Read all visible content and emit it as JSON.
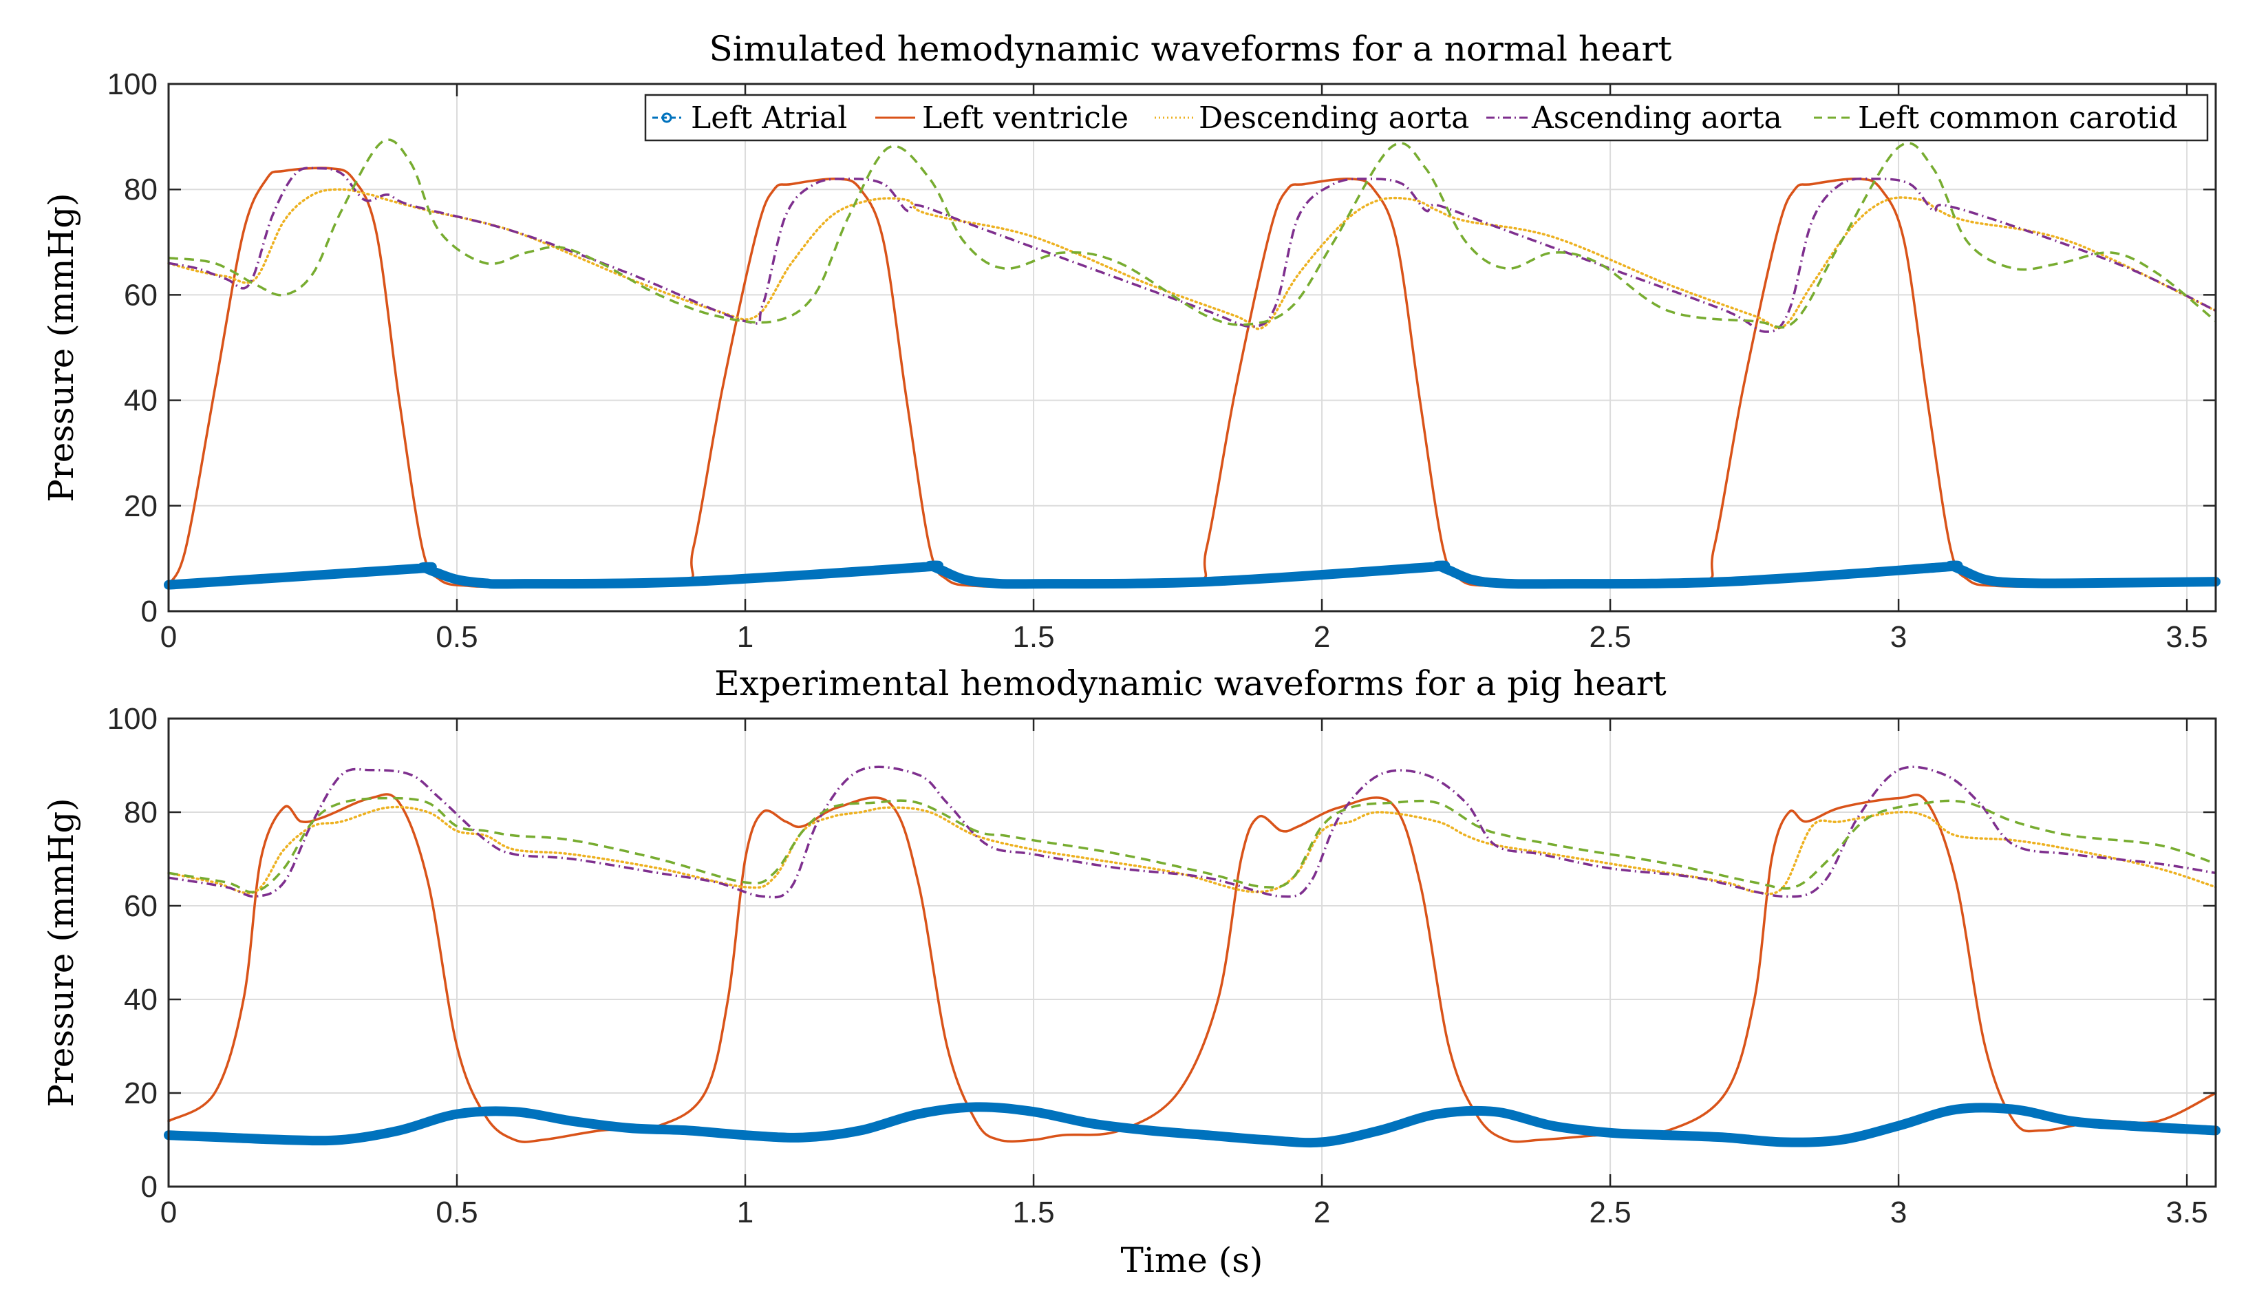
{
  "figure": {
    "xlabel": "Time (s)"
  },
  "legend": {
    "entries": [
      {
        "name": "Left Atrial",
        "color": "#0072BD",
        "style": "thick-circle"
      },
      {
        "name": "Left ventricle",
        "color": "#D95319",
        "style": "solid"
      },
      {
        "name": "Descending aorta",
        "color": "#EDB120",
        "style": "dotted"
      },
      {
        "name": "Ascending aorta",
        "color": "#7E2F8E",
        "style": "dashdot"
      },
      {
        "name": "Left common carotid",
        "color": "#77AC30",
        "style": "dashed"
      }
    ]
  },
  "chart_data": [
    {
      "type": "line",
      "title": "Simulated hemodynamic waveforms for a normal heart",
      "xlabel": "",
      "ylabel": "Pressure (mmHg)",
      "xlim": [
        0,
        3.55
      ],
      "ylim": [
        0,
        100
      ],
      "xticks": [
        0,
        0.5,
        1,
        1.5,
        2,
        2.5,
        3,
        3.5
      ],
      "xtick_labels": [
        "0",
        "0.5",
        "1",
        "1.5",
        "2",
        "2.5",
        "3",
        "3.5"
      ],
      "yticks": [
        0,
        20,
        40,
        60,
        80,
        100
      ],
      "ytick_labels": [
        "0",
        "20",
        "40",
        "60",
        "80",
        "100"
      ],
      "grid": true,
      "legend_position": "top-right",
      "series": [
        {
          "name": "Left Atrial",
          "color": "#0072BD",
          "style": "thick",
          "x": [
            0,
            0.42,
            0.44,
            0.46,
            0.5,
            0.55,
            0.6,
            0.9,
            1.3,
            1.32,
            1.34,
            1.38,
            1.43,
            1.5,
            1.8,
            2.18,
            2.2,
            2.22,
            2.26,
            2.31,
            2.4,
            2.7,
            3.07,
            3.09,
            3.11,
            3.15,
            3.2,
            3.3,
            3.55
          ],
          "y": [
            5,
            8,
            8.3,
            7.5,
            6,
            5.3,
            5.2,
            5.6,
            8.3,
            8.6,
            7.8,
            6,
            5.3,
            5.2,
            5.6,
            8.3,
            8.6,
            7.8,
            6,
            5.3,
            5.2,
            5.6,
            8.3,
            8.6,
            7.8,
            6,
            5.4,
            5.3,
            5.6
          ]
        },
        {
          "name": "Left ventricle",
          "color": "#D95319",
          "style": "solid",
          "x": [
            0,
            0.03,
            0.08,
            0.13,
            0.17,
            0.2,
            0.28,
            0.32,
            0.36,
            0.4,
            0.44,
            0.47,
            0.52,
            0.6,
            0.88,
            0.91,
            0.96,
            1.02,
            1.05,
            1.08,
            1.16,
            1.2,
            1.24,
            1.28,
            1.32,
            1.35,
            1.4,
            1.5,
            1.77,
            1.8,
            1.85,
            1.91,
            1.94,
            1.97,
            2.05,
            2.09,
            2.13,
            2.17,
            2.21,
            2.24,
            2.29,
            2.4,
            2.65,
            2.68,
            2.73,
            2.79,
            2.82,
            2.85,
            2.93,
            2.97,
            3.01,
            3.05,
            3.09,
            3.12,
            3.17,
            3.3,
            3.55
          ],
          "y": [
            5,
            12,
            42,
            72,
            82,
            83.5,
            84,
            82,
            72,
            40,
            12,
            6,
            4.8,
            4.8,
            5.5,
            12,
            42,
            72,
            80,
            81,
            82,
            80,
            70,
            40,
            12,
            6,
            4.8,
            4.8,
            5.5,
            12,
            42,
            72,
            80,
            81,
            82,
            80,
            70,
            40,
            12,
            6,
            4.8,
            4.8,
            5.5,
            12,
            42,
            72,
            80,
            81,
            82,
            80,
            70,
            40,
            12,
            6,
            4.8,
            4.8,
            5.5
          ]
        },
        {
          "name": "Descending aorta",
          "color": "#EDB120",
          "style": "dotted",
          "x": [
            0,
            0.05,
            0.1,
            0.15,
            0.2,
            0.25,
            0.3,
            0.35,
            0.38,
            0.45,
            0.6,
            0.8,
            0.95,
            1.02,
            1.08,
            1.15,
            1.22,
            1.28,
            1.3,
            1.35,
            1.5,
            1.7,
            1.85,
            1.9,
            1.96,
            2.04,
            2.1,
            2.16,
            2.2,
            2.25,
            2.4,
            2.6,
            2.75,
            2.8,
            2.85,
            2.92,
            2.98,
            3.04,
            3.07,
            3.12,
            3.3,
            3.55
          ],
          "y": [
            66,
            64.5,
            63.5,
            63,
            74,
            79,
            80,
            79,
            78,
            76,
            72,
            63,
            57,
            56,
            66,
            75,
            78,
            78,
            76,
            74.5,
            71,
            62,
            56,
            54,
            64,
            74,
            78,
            78,
            76,
            74,
            71,
            62,
            56,
            54,
            62,
            73,
            78,
            78,
            76,
            74,
            70,
            57
          ]
        },
        {
          "name": "Ascending aorta",
          "color": "#7E2F8E",
          "style": "dashdot",
          "x": [
            0,
            0.05,
            0.1,
            0.14,
            0.18,
            0.22,
            0.26,
            0.3,
            0.34,
            0.38,
            0.42,
            0.6,
            0.8,
            1.0,
            1.03,
            1.07,
            1.12,
            1.18,
            1.24,
            1.28,
            1.3,
            1.4,
            1.6,
            1.8,
            1.88,
            1.92,
            1.96,
            2.02,
            2.08,
            2.14,
            2.18,
            2.2,
            2.3,
            2.5,
            2.7,
            2.77,
            2.81,
            2.85,
            2.9,
            2.96,
            3.02,
            3.06,
            3.08,
            3.2,
            3.4,
            3.55
          ],
          "y": [
            66,
            65,
            63,
            62,
            75,
            83,
            84,
            83,
            78,
            79,
            77,
            72,
            64,
            55,
            58,
            75,
            81,
            82,
            81,
            76,
            77,
            73,
            65,
            57,
            54,
            58,
            75,
            81,
            82,
            81,
            76,
            77,
            73,
            65,
            57,
            53,
            57,
            74,
            81,
            82,
            81,
            76,
            77,
            73,
            65,
            57
          ]
        },
        {
          "name": "Left common carotid",
          "color": "#77AC30",
          "style": "dashed",
          "x": [
            0,
            0.08,
            0.15,
            0.2,
            0.25,
            0.3,
            0.37,
            0.42,
            0.47,
            0.55,
            0.62,
            0.68,
            0.75,
            0.85,
            0.95,
            1.05,
            1.12,
            1.18,
            1.25,
            1.32,
            1.38,
            1.45,
            1.55,
            1.65,
            1.8,
            1.88,
            1.95,
            2.02,
            2.12,
            2.18,
            2.25,
            2.32,
            2.4,
            2.48,
            2.6,
            2.75,
            2.82,
            2.9,
            3.0,
            3.06,
            3.12,
            3.2,
            3.28,
            3.37,
            3.45,
            3.55
          ],
          "y": [
            67,
            66,
            62,
            60,
            64,
            76,
            89,
            85,
            72,
            66,
            68,
            69,
            66,
            60,
            56,
            55,
            60,
            75,
            88,
            82,
            70,
            65,
            68,
            66,
            56,
            54.5,
            58,
            70,
            88,
            84,
            70,
            65,
            68,
            66,
            57,
            55,
            55,
            70,
            88,
            84,
            70,
            65,
            66,
            68,
            64,
            55
          ]
        }
      ]
    },
    {
      "type": "line",
      "title": "Experimental hemodynamic waveforms for a pig heart",
      "xlabel": "Time (s)",
      "ylabel": "Pressure (mmHg)",
      "xlim": [
        0,
        3.55
      ],
      "ylim": [
        0,
        100
      ],
      "xticks": [
        0,
        0.5,
        1,
        1.5,
        2,
        2.5,
        3,
        3.5
      ],
      "xtick_labels": [
        "0",
        "0.5",
        "1",
        "1.5",
        "2",
        "2.5",
        "3",
        "3.5"
      ],
      "yticks": [
        0,
        20,
        40,
        60,
        80,
        100
      ],
      "ytick_labels": [
        "0",
        "20",
        "40",
        "60",
        "80",
        "100"
      ],
      "grid": true,
      "series": [
        {
          "name": "Left Atrial",
          "color": "#0072BD",
          "style": "thick",
          "x": [
            0,
            0.1,
            0.2,
            0.3,
            0.4,
            0.5,
            0.6,
            0.7,
            0.8,
            0.9,
            1.0,
            1.1,
            1.2,
            1.3,
            1.4,
            1.5,
            1.6,
            1.7,
            1.8,
            1.9,
            2.0,
            2.1,
            2.2,
            2.3,
            2.4,
            2.5,
            2.6,
            2.7,
            2.8,
            2.9,
            3.0,
            3.1,
            3.2,
            3.3,
            3.4,
            3.55
          ],
          "y": [
            11,
            10.5,
            10,
            10,
            12,
            15.5,
            16,
            14,
            12.5,
            12,
            11,
            10.5,
            12,
            15.5,
            17,
            16,
            13.5,
            12,
            11,
            10,
            9.5,
            12,
            15.5,
            16,
            13,
            11.5,
            11,
            10.5,
            9.5,
            10,
            13,
            16.5,
            16.5,
            14,
            13,
            12
          ]
        },
        {
          "name": "Left ventricle",
          "color": "#D95319",
          "style": "solid",
          "x": [
            0,
            0.08,
            0.13,
            0.16,
            0.2,
            0.23,
            0.27,
            0.35,
            0.4,
            0.45,
            0.5,
            0.55,
            0.6,
            0.65,
            0.75,
            0.85,
            0.93,
            0.97,
            1.0,
            1.03,
            1.07,
            1.1,
            1.16,
            1.25,
            1.3,
            1.35,
            1.4,
            1.44,
            1.5,
            1.55,
            1.65,
            1.75,
            1.82,
            1.86,
            1.89,
            1.93,
            1.96,
            2.03,
            2.12,
            2.17,
            2.22,
            2.27,
            2.32,
            2.38,
            2.48,
            2.6,
            2.7,
            2.75,
            2.78,
            2.81,
            2.84,
            2.9,
            3.0,
            3.05,
            3.1,
            3.15,
            3.2,
            3.25,
            3.35,
            3.45,
            3.55
          ],
          "y": [
            14,
            20,
            40,
            70,
            81,
            78,
            79,
            83,
            82,
            65,
            30,
            15,
            10,
            10,
            12,
            13,
            20,
            40,
            70,
            80,
            78,
            77,
            81,
            82,
            65,
            30,
            14,
            10,
            10,
            11,
            12,
            20,
            40,
            70,
            79,
            76,
            77,
            81,
            82,
            65,
            30,
            15,
            10,
            10,
            11,
            12,
            20,
            40,
            70,
            80,
            78,
            81,
            83,
            82,
            65,
            30,
            14,
            12,
            14,
            14,
            20
          ]
        },
        {
          "name": "Descending aorta",
          "color": "#EDB120",
          "style": "dotted",
          "x": [
            0,
            0.08,
            0.15,
            0.2,
            0.25,
            0.3,
            0.38,
            0.45,
            0.5,
            0.55,
            0.6,
            0.7,
            0.85,
            1.0,
            1.05,
            1.1,
            1.15,
            1.2,
            1.25,
            1.32,
            1.4,
            1.5,
            1.6,
            1.75,
            1.88,
            1.95,
            2.0,
            2.05,
            2.1,
            2.2,
            2.25,
            2.3,
            2.4,
            2.55,
            2.7,
            2.75,
            2.8,
            2.85,
            2.9,
            3.0,
            3.05,
            3.1,
            3.2,
            3.3,
            3.45,
            3.55
          ],
          "y": [
            67,
            65,
            63,
            72,
            77,
            78,
            81,
            80,
            76,
            75,
            72,
            71,
            68,
            64,
            66,
            76,
            79,
            80,
            81,
            80,
            75,
            72,
            70,
            67,
            63,
            66,
            76,
            78,
            80,
            78,
            75,
            73,
            71,
            68,
            65,
            63,
            64,
            77,
            78,
            80,
            79,
            75,
            74,
            72,
            68,
            64
          ]
        },
        {
          "name": "Ascending aorta",
          "color": "#7E2F8E",
          "style": "dashdot",
          "x": [
            0,
            0.1,
            0.15,
            0.2,
            0.25,
            0.3,
            0.35,
            0.42,
            0.47,
            0.55,
            0.6,
            0.7,
            0.85,
            0.95,
            1.03,
            1.08,
            1.13,
            1.2,
            1.3,
            1.35,
            1.42,
            1.5,
            1.65,
            1.8,
            1.93,
            1.98,
            2.03,
            2.1,
            2.18,
            2.25,
            2.3,
            2.38,
            2.5,
            2.65,
            2.8,
            2.87,
            2.93,
            3.0,
            3.08,
            3.14,
            3.2,
            3.3,
            3.45,
            3.55
          ],
          "y": [
            66,
            64,
            62,
            65,
            78,
            88,
            89,
            88,
            83,
            74,
            71,
            70,
            67,
            65,
            62,
            64,
            79,
            89,
            88,
            82,
            73,
            71,
            68,
            66,
            62,
            65,
            79,
            88,
            88,
            82,
            73,
            71,
            68,
            66,
            62,
            65,
            79,
            89,
            88,
            82,
            73,
            71,
            69,
            67
          ]
        },
        {
          "name": "Left common carotid",
          "color": "#77AC30",
          "style": "dashed",
          "x": [
            0,
            0.1,
            0.15,
            0.2,
            0.25,
            0.3,
            0.38,
            0.45,
            0.5,
            0.55,
            0.6,
            0.7,
            0.85,
            1.0,
            1.05,
            1.1,
            1.15,
            1.22,
            1.3,
            1.4,
            1.45,
            1.5,
            1.65,
            1.8,
            1.9,
            1.95,
            2.0,
            2.05,
            2.12,
            2.2,
            2.27,
            2.32,
            2.45,
            2.6,
            2.75,
            2.82,
            2.88,
            2.95,
            3.05,
            3.12,
            3.2,
            3.3,
            3.45,
            3.55
          ],
          "y": [
            67,
            65,
            63,
            68,
            78,
            82,
            83,
            82,
            77,
            76,
            75,
            74,
            70,
            65,
            67,
            76,
            81,
            82,
            82,
            76,
            75,
            74,
            71,
            67,
            64,
            66,
            77,
            81,
            82,
            82,
            77,
            75,
            72,
            69,
            65,
            64,
            70,
            79,
            82,
            82,
            78,
            75,
            73,
            69
          ]
        }
      ]
    }
  ]
}
